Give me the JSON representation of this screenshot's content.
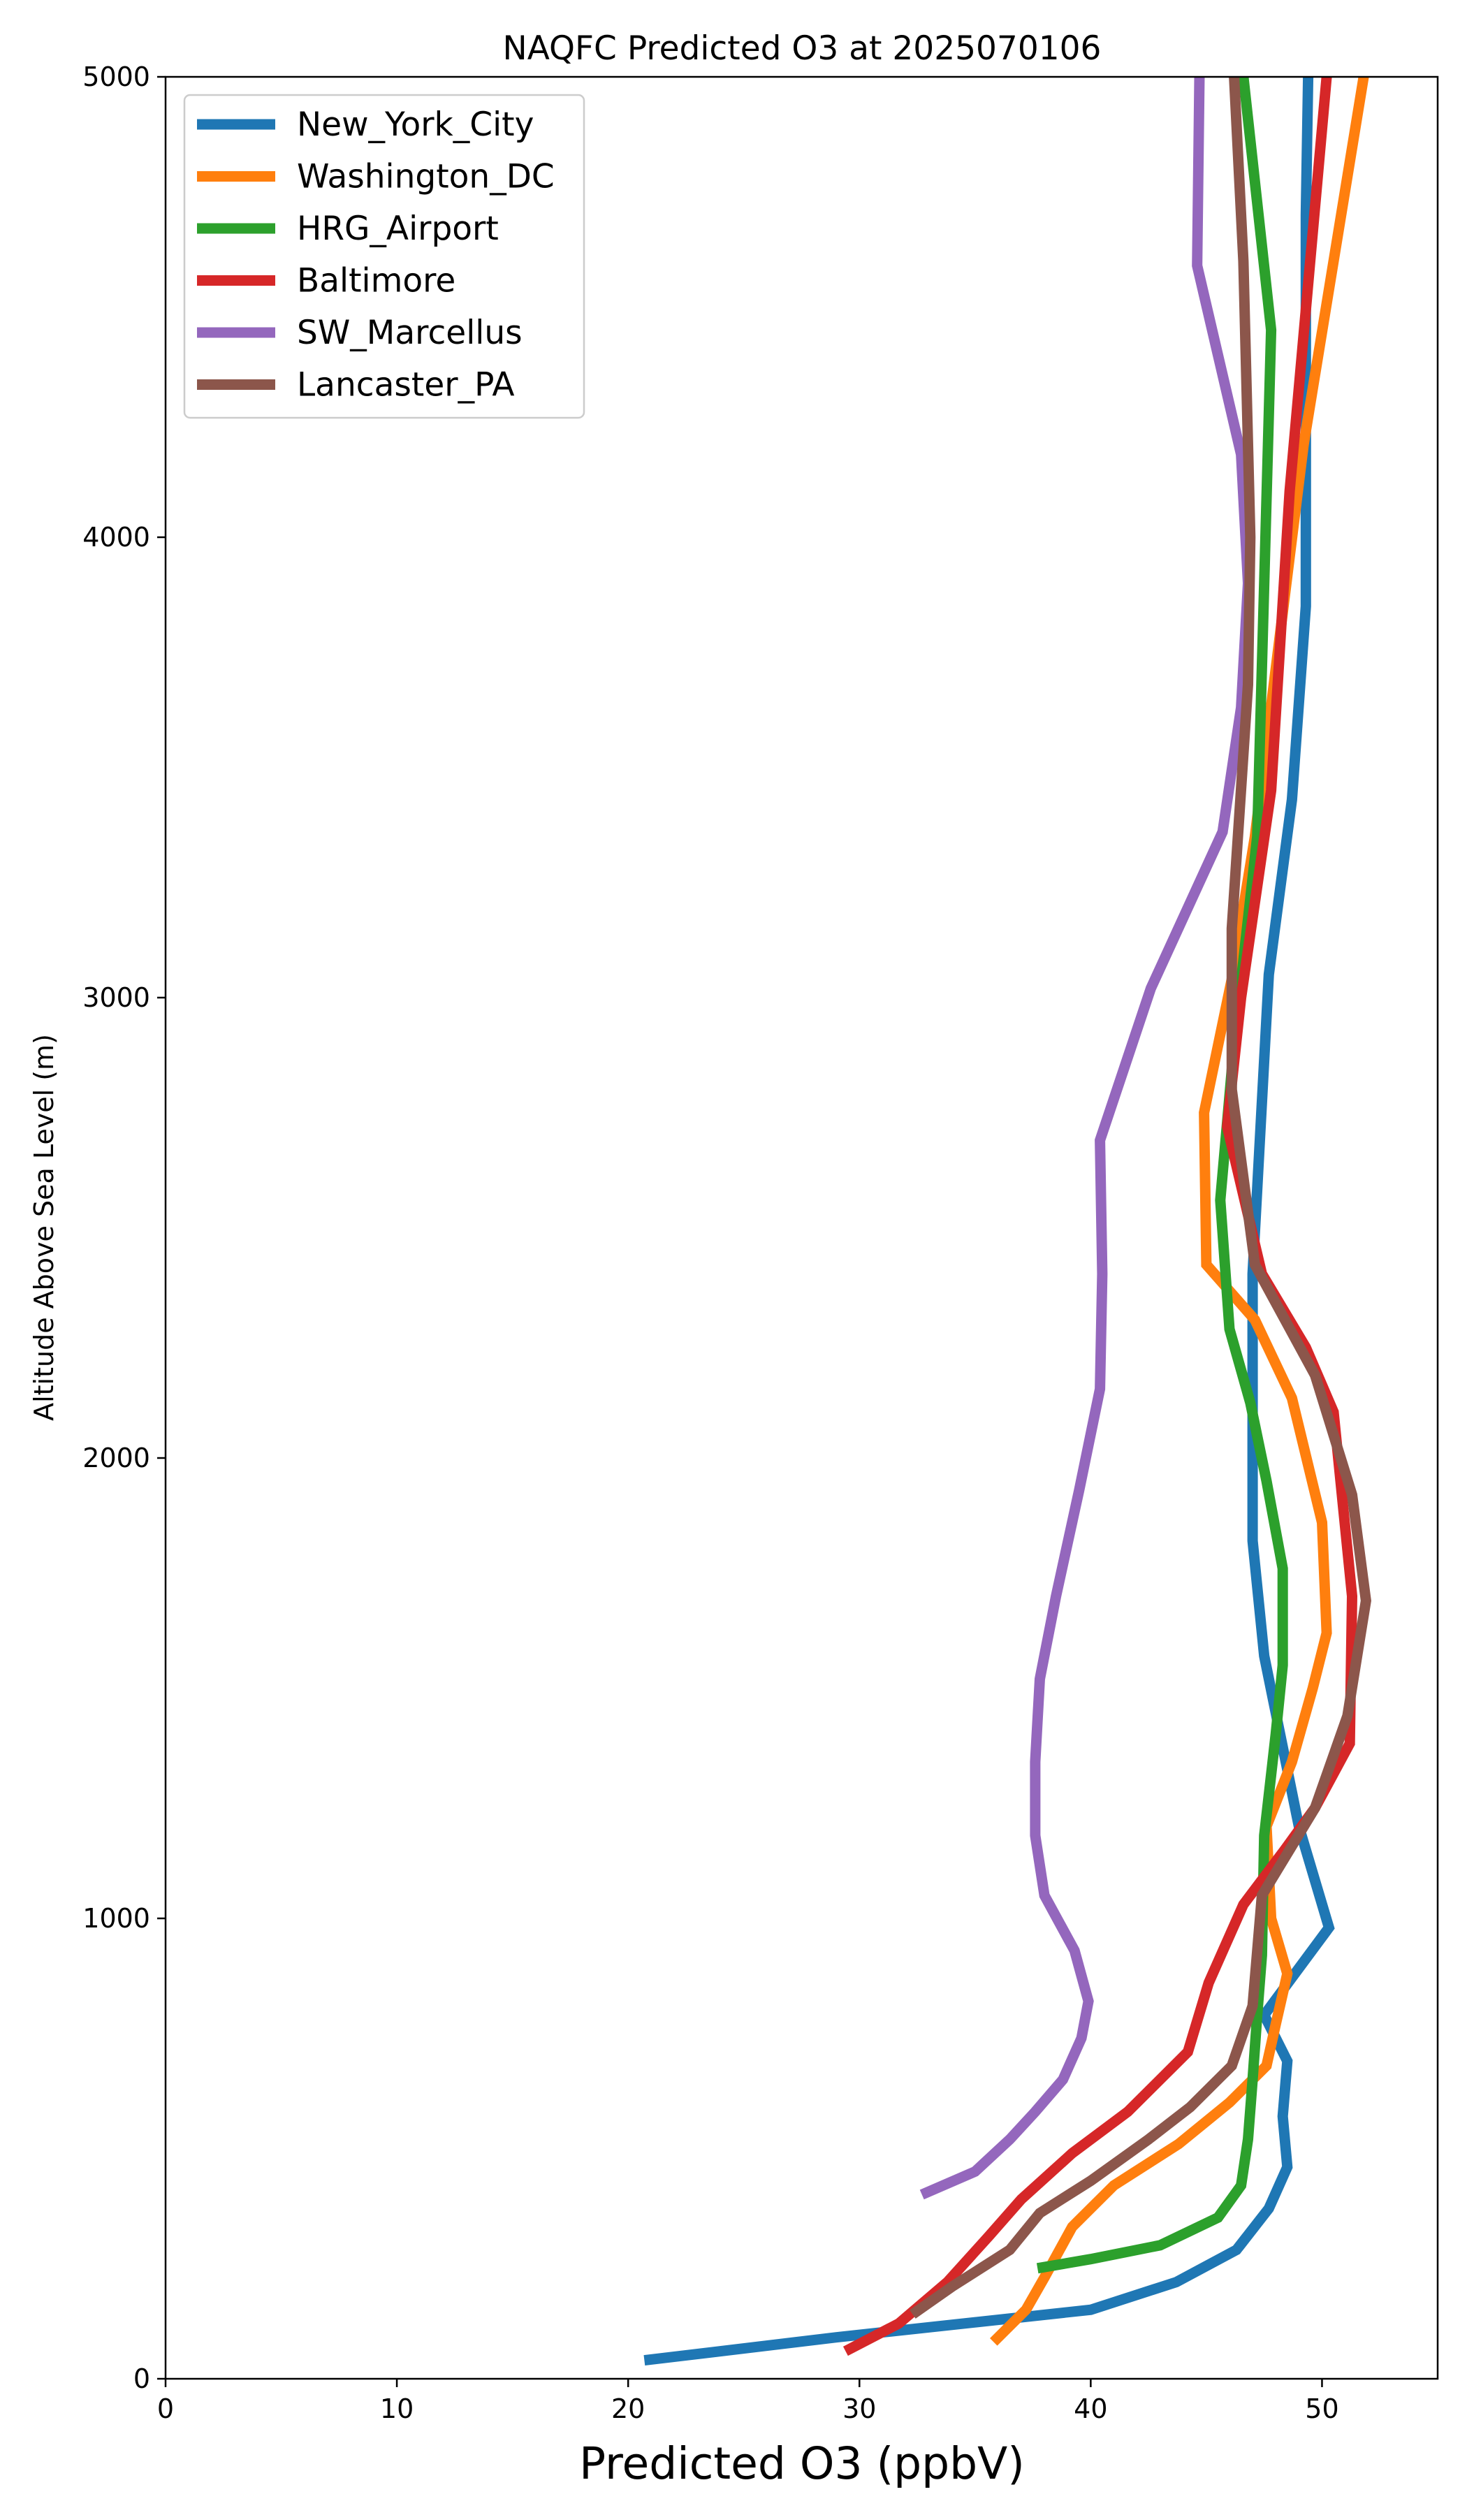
{
  "chart_data": {
    "type": "line",
    "title": "NAQFC Predicted O3 at 2025070106",
    "xlabel": "Predicted O3 (ppbV)",
    "ylabel": "Altitude Above Sea Level (m)",
    "xlim": [
      0,
      55
    ],
    "ylim": [
      0,
      5000
    ],
    "xticks": [
      0,
      10,
      20,
      30,
      40,
      50
    ],
    "yticks": [
      0,
      1000,
      2000,
      3000,
      4000,
      5000
    ],
    "grid": false,
    "legend_position": "top-left",
    "series": [
      {
        "name": "New_York_City",
        "color": "#1f77b4",
        "points": [
          [
            20.7,
            40
          ],
          [
            29.0,
            90
          ],
          [
            40.0,
            150
          ],
          [
            43.7,
            210
          ],
          [
            46.3,
            280
          ],
          [
            47.7,
            370
          ],
          [
            48.5,
            460
          ],
          [
            48.3,
            570
          ],
          [
            48.5,
            690
          ],
          [
            47.5,
            790
          ],
          [
            50.3,
            980
          ],
          [
            49.0,
            1200
          ],
          [
            47.5,
            1570
          ],
          [
            47.0,
            1820
          ],
          [
            47.0,
            2400
          ],
          [
            47.7,
            3050
          ],
          [
            48.7,
            3430
          ],
          [
            49.3,
            3850
          ],
          [
            49.3,
            4700
          ],
          [
            49.4,
            5000
          ]
        ]
      },
      {
        "name": "Washington_DC",
        "color": "#ff7f0e",
        "points": [
          [
            35.8,
            80
          ],
          [
            37.2,
            150
          ],
          [
            38.0,
            220
          ],
          [
            39.2,
            330
          ],
          [
            41.0,
            420
          ],
          [
            43.8,
            510
          ],
          [
            46.0,
            600
          ],
          [
            47.6,
            680
          ],
          [
            48.0,
            770
          ],
          [
            48.5,
            880
          ],
          [
            47.8,
            1000
          ],
          [
            47.6,
            1200
          ],
          [
            48.7,
            1340
          ],
          [
            49.6,
            1500
          ],
          [
            50.2,
            1620
          ],
          [
            50.0,
            1860
          ],
          [
            48.7,
            2130
          ],
          [
            47.1,
            2300
          ],
          [
            45.0,
            2420
          ],
          [
            44.9,
            2750
          ],
          [
            46.1,
            3040
          ],
          [
            47.1,
            3350
          ],
          [
            49.2,
            4200
          ],
          [
            51.8,
            5000
          ]
        ]
      },
      {
        "name": "HRG_Airport",
        "color": "#2ca02c",
        "points": [
          [
            37.7,
            240
          ],
          [
            40.0,
            260
          ],
          [
            43.0,
            290
          ],
          [
            45.5,
            350
          ],
          [
            46.5,
            420
          ],
          [
            46.8,
            520
          ],
          [
            47.0,
            650
          ],
          [
            47.2,
            790
          ],
          [
            47.4,
            920
          ],
          [
            47.5,
            1180
          ],
          [
            48.0,
            1400
          ],
          [
            48.3,
            1550
          ],
          [
            48.3,
            1760
          ],
          [
            47.6,
            1950
          ],
          [
            46.9,
            2120
          ],
          [
            46.0,
            2280
          ],
          [
            45.6,
            2560
          ],
          [
            46.2,
            2900
          ],
          [
            47.2,
            3350
          ],
          [
            47.5,
            3900
          ],
          [
            47.8,
            4450
          ],
          [
            46.6,
            5000
          ]
        ]
      },
      {
        "name": "Baltimore",
        "color": "#d62728",
        "points": [
          [
            29.4,
            60
          ],
          [
            31.7,
            120
          ],
          [
            33.8,
            210
          ],
          [
            35.6,
            310
          ],
          [
            37.0,
            390
          ],
          [
            39.2,
            490
          ],
          [
            41.6,
            580
          ],
          [
            44.2,
            710
          ],
          [
            45.1,
            860
          ],
          [
            46.6,
            1030
          ],
          [
            48.4,
            1150
          ],
          [
            49.7,
            1240
          ],
          [
            51.2,
            1380
          ],
          [
            51.3,
            1700
          ],
          [
            50.5,
            2100
          ],
          [
            49.3,
            2240
          ],
          [
            47.4,
            2400
          ],
          [
            45.9,
            2720
          ],
          [
            46.5,
            3000
          ],
          [
            47.8,
            3450
          ],
          [
            48.6,
            4100
          ],
          [
            50.2,
            5000
          ]
        ]
      },
      {
        "name": "SW_Marcellus",
        "color": "#9467bd",
        "points": [
          [
            32.7,
            400
          ],
          [
            35.0,
            450
          ],
          [
            36.5,
            520
          ],
          [
            37.6,
            580
          ],
          [
            38.8,
            650
          ],
          [
            39.6,
            740
          ],
          [
            39.9,
            820
          ],
          [
            39.3,
            930
          ],
          [
            38.0,
            1050
          ],
          [
            37.6,
            1180
          ],
          [
            37.6,
            1340
          ],
          [
            37.8,
            1520
          ],
          [
            38.5,
            1700
          ],
          [
            39.5,
            1930
          ],
          [
            40.4,
            2150
          ],
          [
            40.5,
            2400
          ],
          [
            40.4,
            2690
          ],
          [
            42.6,
            3020
          ],
          [
            45.7,
            3360
          ],
          [
            46.5,
            3630
          ],
          [
            46.8,
            3900
          ],
          [
            46.5,
            4180
          ],
          [
            44.6,
            4590
          ],
          [
            44.7,
            5000
          ]
        ]
      },
      {
        "name": "Lancaster_PA",
        "color": "#8c564b",
        "points": [
          [
            32.3,
            140
          ],
          [
            34.0,
            200
          ],
          [
            36.5,
            280
          ],
          [
            37.8,
            360
          ],
          [
            40.0,
            430
          ],
          [
            42.5,
            520
          ],
          [
            44.3,
            590
          ],
          [
            46.1,
            680
          ],
          [
            47.0,
            810
          ],
          [
            47.4,
            1050
          ],
          [
            49.7,
            1240
          ],
          [
            51.1,
            1440
          ],
          [
            51.9,
            1690
          ],
          [
            51.3,
            1920
          ],
          [
            49.7,
            2180
          ],
          [
            47.1,
            2420
          ],
          [
            46.1,
            2800
          ],
          [
            46.1,
            3150
          ],
          [
            46.8,
            3680
          ],
          [
            46.9,
            4000
          ],
          [
            46.6,
            4600
          ],
          [
            46.2,
            5000
          ]
        ]
      }
    ]
  }
}
